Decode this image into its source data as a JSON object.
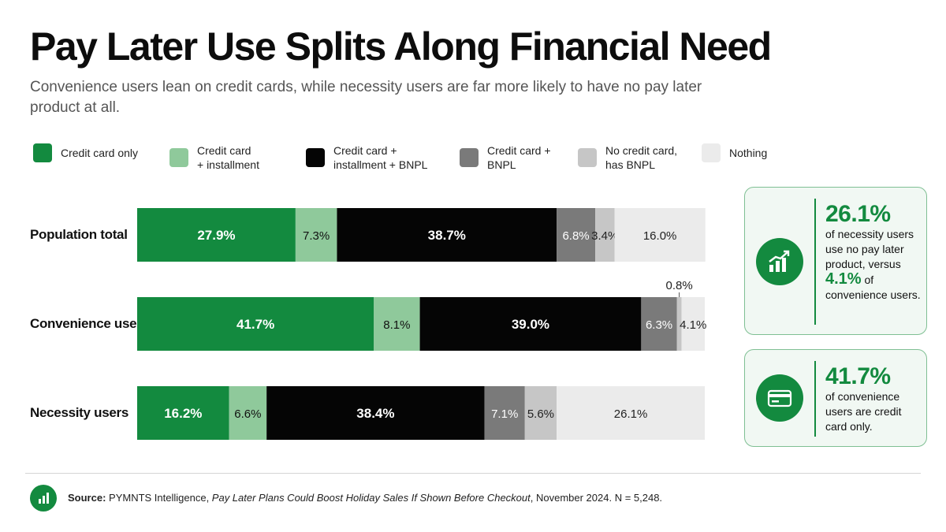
{
  "header": {
    "title": "Pay Later Use Splits Along Financial Need",
    "subtitle": "Convenience users lean on credit cards, while necessity users are far more likely to have no pay later product at all."
  },
  "chart_data": {
    "type": "bar",
    "orientation": "horizontal",
    "stacked": true,
    "xlim": [
      0,
      100
    ],
    "categories": [
      "Population total",
      "Convenience users",
      "Necessity users"
    ],
    "series": [
      {
        "name": "Credit card only",
        "color": "#138a3f",
        "text_color": "#ffffff",
        "values": [
          27.9,
          41.7,
          16.2
        ]
      },
      {
        "name": "Credit card\n+ installment",
        "color": "#8fc99b",
        "text_color": "#111111",
        "values": [
          7.3,
          8.1,
          6.6
        ]
      },
      {
        "name": "Credit card +\ninstallment + BNPL",
        "color": "#050505",
        "text_color": "#ffffff",
        "values": [
          38.7,
          39.0,
          38.4
        ]
      },
      {
        "name": "Credit card +\nBNPL",
        "color": "#7a7a7a",
        "text_color": "#ffffff",
        "values": [
          6.8,
          6.3,
          7.1
        ]
      },
      {
        "name": "No credit card,\nhas BNPL",
        "color": "#c6c6c6",
        "text_color": "#222222",
        "values": [
          3.4,
          0.8,
          5.6
        ]
      },
      {
        "name": "Nothing",
        "color": "#ebebeb",
        "text_color": "#222222",
        "values": [
          16.0,
          4.1,
          26.1
        ]
      }
    ],
    "data_labels": [
      [
        "27.9%",
        "7.3%",
        "38.7%",
        "6.8%",
        "3.4%",
        "16.0%"
      ],
      [
        "41.7%",
        "8.1%",
        "39.0%",
        "6.3%",
        "0.8%",
        "4.1%"
      ],
      [
        "16.2%",
        "6.6%",
        "38.4%",
        "7.1%",
        "5.6%",
        "26.1%"
      ]
    ],
    "legend_position": "top",
    "grid": false
  },
  "callouts": [
    {
      "icon": "growth-chart-icon",
      "big_value": "26.1%",
      "text_a": "of necessity users use no pay later product, versus",
      "mid_value": "4.1%",
      "text_b": " of convenience users."
    },
    {
      "icon": "credit-card-icon",
      "big_value": "41.7%",
      "text_a": "of convenience users are credit card only."
    }
  ],
  "footer": {
    "icon": "bar-chart-icon",
    "source_label": "Source:",
    "source_org": " PYMNTS Intelligence, ",
    "source_title": "Pay Later Plans Could Boost Holiday Sales If Shown Before Checkout",
    "source_tail": ", November 2024. N = 5,248."
  },
  "colors": {
    "accent": "#138a3f",
    "callout_bg": "#f1f8f3",
    "callout_border": "#7fbf93"
  }
}
